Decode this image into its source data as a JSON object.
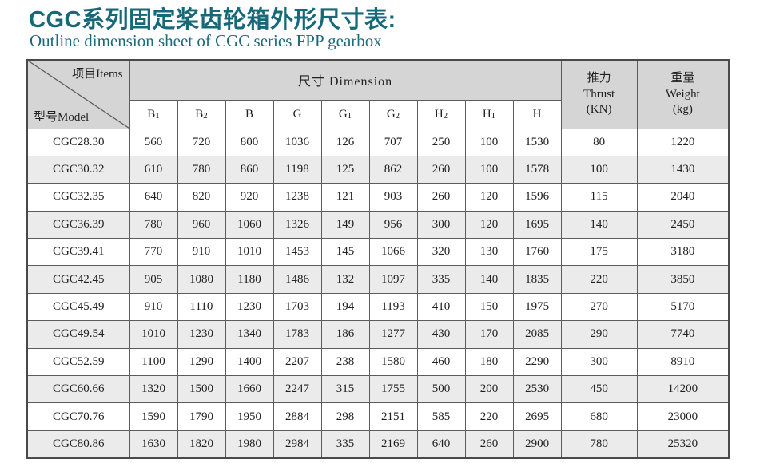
{
  "page": {
    "title": "CGC系列固定桨齿轮箱外形尺寸表:",
    "subtitle": "Outline dimension sheet of CGC series FPP gearbox"
  },
  "colors": {
    "accent_teal": "#17697a",
    "header_gray": "#d5d5d5",
    "alt_row_gray": "#ebebeb",
    "border_dark": "#4a4a4a"
  },
  "table": {
    "corner": {
      "top": "项目Items",
      "bottom": "型号Model"
    },
    "dimension_header": "尺寸 Dimension",
    "thrust_header": {
      "zh": "推力",
      "en": "Thrust",
      "unit": "(KN)"
    },
    "weight_header": {
      "zh": "重量",
      "en": "Weight",
      "unit": "(kg)"
    },
    "columns": [
      {
        "base": "B",
        "sub": "1"
      },
      {
        "base": "B",
        "sub": "2"
      },
      {
        "base": "B",
        "sub": ""
      },
      {
        "base": "G",
        "sub": ""
      },
      {
        "base": "G",
        "sub": "1"
      },
      {
        "base": "G",
        "sub": "2"
      },
      {
        "base": "H",
        "sub": "2"
      },
      {
        "base": "H",
        "sub": "1"
      },
      {
        "base": "H",
        "sub": ""
      }
    ],
    "rows": [
      {
        "model": "CGC28.30",
        "values": [
          "560",
          "720",
          "800",
          "1036",
          "126",
          "707",
          "250",
          "100",
          "1530",
          "80",
          "1220"
        ]
      },
      {
        "model": "CGC30.32",
        "values": [
          "610",
          "780",
          "860",
          "1198",
          "125",
          "862",
          "260",
          "100",
          "1578",
          "100",
          "1430"
        ]
      },
      {
        "model": "CGC32.35",
        "values": [
          "640",
          "820",
          "920",
          "1238",
          "121",
          "903",
          "260",
          "120",
          "1596",
          "115",
          "2040"
        ]
      },
      {
        "model": "CGC36.39",
        "values": [
          "780",
          "960",
          "1060",
          "1326",
          "149",
          "956",
          "300",
          "120",
          "1695",
          "140",
          "2450"
        ]
      },
      {
        "model": "CGC39.41",
        "values": [
          "770",
          "910",
          "1010",
          "1453",
          "145",
          "1066",
          "320",
          "130",
          "1760",
          "175",
          "3180"
        ]
      },
      {
        "model": "CGC42.45",
        "values": [
          "905",
          "1080",
          "1180",
          "1486",
          "132",
          "1097",
          "335",
          "140",
          "1835",
          "220",
          "3850"
        ]
      },
      {
        "model": "CGC45.49",
        "values": [
          "910",
          "1110",
          "1230",
          "1703",
          "194",
          "1193",
          "410",
          "150",
          "1975",
          "270",
          "5170"
        ]
      },
      {
        "model": "CGC49.54",
        "values": [
          "1010",
          "1230",
          "1340",
          "1783",
          "186",
          "1277",
          "430",
          "170",
          "2085",
          "290",
          "7740"
        ]
      },
      {
        "model": "CGC52.59",
        "values": [
          "1100",
          "1290",
          "1400",
          "2207",
          "238",
          "1580",
          "460",
          "180",
          "2290",
          "300",
          "8910"
        ]
      },
      {
        "model": "CGC60.66",
        "values": [
          "1320",
          "1500",
          "1660",
          "2247",
          "315",
          "1755",
          "500",
          "200",
          "2530",
          "450",
          "14200"
        ]
      },
      {
        "model": "CGC70.76",
        "values": [
          "1590",
          "1790",
          "1950",
          "2884",
          "298",
          "2151",
          "585",
          "220",
          "2695",
          "680",
          "23000"
        ]
      },
      {
        "model": "CGC80.86",
        "values": [
          "1630",
          "1820",
          "1980",
          "2984",
          "335",
          "2169",
          "640",
          "260",
          "2900",
          "780",
          "25320"
        ]
      }
    ]
  }
}
